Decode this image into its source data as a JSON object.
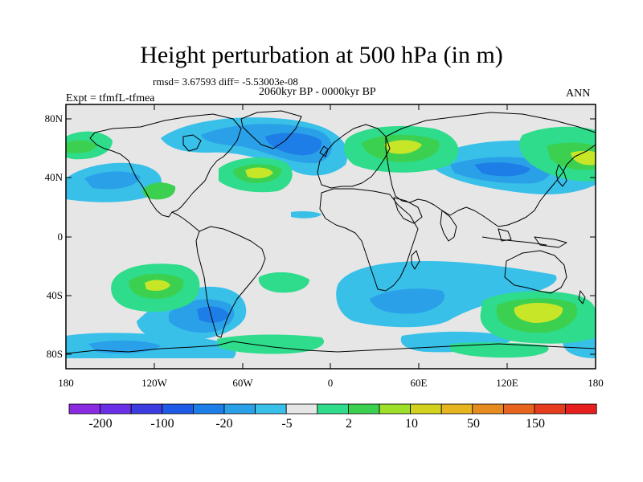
{
  "title": "Height perturbation at 500 hPa (in m)",
  "stats_text": "rmsd= 3.67593 diff= -5.53003e-08",
  "period_text": "2060kyr BP - 0000kyr BP",
  "experiment_text": "Expt = tfmfL-tfmea",
  "season_text": "ANN",
  "lat_labels": [
    "80N",
    "40N",
    "0",
    "40S",
    "80S"
  ],
  "lon_labels": [
    "180",
    "120W",
    "60W",
    "0",
    "60E",
    "120E",
    "180"
  ],
  "colorbar": {
    "colors": [
      "#8a2be2",
      "#6a30e8",
      "#3c3ce0",
      "#1e5ae6",
      "#1e7ee8",
      "#2aa0e8",
      "#38c0e8",
      "#e6e6e6",
      "#2edc8c",
      "#3cd050",
      "#9ce02a",
      "#d2d21e",
      "#e6b41e",
      "#e68c1e",
      "#e6641e",
      "#e63c1e",
      "#e61e1e"
    ],
    "labels": [
      "-200",
      "-100",
      "-20",
      "-5",
      "2",
      "10",
      "50",
      "150"
    ]
  },
  "colors": {
    "background_fill": "#e6e6e6",
    "neg_weak": "#38c0e8",
    "neg_mid": "#2aa0e8",
    "neg_strong": "#1e7ee8",
    "pos_weak": "#2edc8c",
    "pos_mid": "#3cd050",
    "pos_strong": "#c8e628"
  }
}
